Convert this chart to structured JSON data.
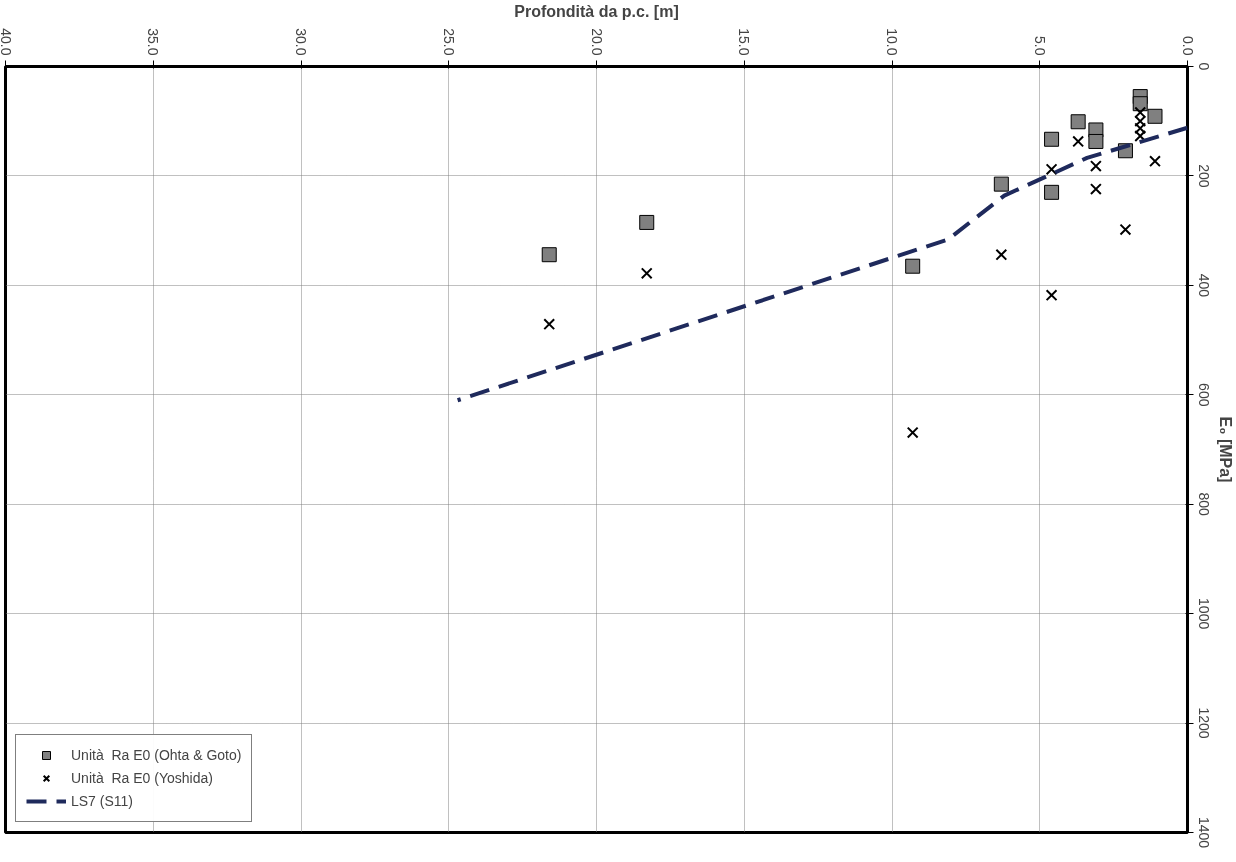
{
  "chart_data": {
    "type": "scatter",
    "xlabel": "Profondità da p.c. [m]",
    "ylabel": "E₀ [MPa]",
    "xlim": [
      40,
      0
    ],
    "ylim": [
      1400,
      0
    ],
    "xticks": [
      {
        "value": 0,
        "label": "0.0"
      },
      {
        "value": 5,
        "label": "5.0"
      },
      {
        "value": 10,
        "label": "10.0"
      },
      {
        "value": 15,
        "label": "15.0"
      },
      {
        "value": 20,
        "label": "20.0"
      },
      {
        "value": 25,
        "label": "25.0"
      },
      {
        "value": 30,
        "label": "30.0"
      },
      {
        "value": 35,
        "label": "35.0"
      },
      {
        "value": 40,
        "label": "40.0"
      }
    ],
    "yticks": [
      0,
      200,
      400,
      600,
      800,
      1000,
      1200,
      1400
    ],
    "grid": true,
    "legend": "bottom left",
    "series": [
      {
        "name": "Unità  Ra E0 (Ohta & Goto)",
        "type": "scatter",
        "marker": "square",
        "color": "#808080",
        "x": [
          1.6,
          1.6,
          1.1,
          3.7,
          3.1,
          3.1,
          4.6,
          2.1,
          6.3,
          4.6,
          18.3,
          21.6,
          9.3
        ],
        "values": [
          55,
          68,
          91,
          101,
          116,
          137,
          133,
          154,
          215,
          230,
          285,
          344,
          365
        ]
      },
      {
        "name": "Unità  Ra E0 (Yoshida)",
        "type": "scatter",
        "marker": "cross",
        "color": "#000000",
        "x": [
          1.6,
          1.6,
          1.6,
          1.6,
          3.7,
          3.1,
          1.1,
          4.6,
          3.1,
          2.1,
          6.3,
          18.3,
          4.6,
          21.6,
          9.3
        ],
        "values": [
          84,
          100,
          113,
          127,
          137,
          182,
          173,
          188,
          224,
          298,
          344,
          378,
          418,
          471,
          669
        ]
      },
      {
        "name": "LS7 (S11)",
        "type": "line",
        "line_style": "dashed",
        "marker": "none",
        "color": "#1f2a5c",
        "x": [
          0,
          3.4,
          6.2,
          8.1,
          24.7
        ],
        "values": [
          112,
          167,
          236,
          316,
          610
        ]
      }
    ]
  }
}
